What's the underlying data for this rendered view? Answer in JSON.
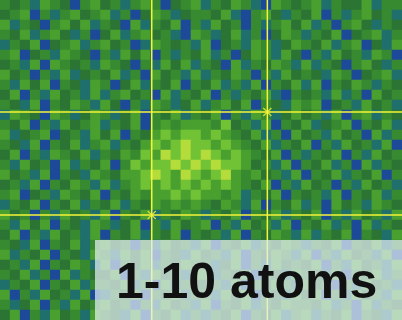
{
  "chart_data": {
    "type": "heatmap",
    "annotation": "1-10 atoms",
    "tick_labels": false,
    "crosshairs": [
      [
        26.6,
        11.2
      ],
      [
        15.1,
        21.5
      ]
    ],
    "cells": [
      [
        5,
        4,
        5,
        3,
        6,
        5,
        4,
        2,
        5,
        6,
        4,
        5,
        3,
        5,
        6,
        5,
        2,
        4,
        5,
        6,
        3,
        5,
        4,
        6,
        5,
        3,
        2,
        6,
        5,
        4,
        5,
        6,
        3,
        5,
        4,
        4,
        6,
        3,
        5,
        5
      ],
      [
        4,
        5,
        6,
        2,
        5,
        3,
        5,
        6,
        4,
        5,
        6,
        3,
        5,
        2,
        4,
        6,
        5,
        3,
        4,
        5,
        5,
        4,
        6,
        3,
        2,
        5,
        6,
        4,
        3,
        5,
        4,
        6,
        2,
        5,
        3,
        5,
        6,
        4,
        5,
        3
      ],
      [
        6,
        3,
        5,
        4,
        2,
        5,
        6,
        4,
        6,
        3,
        5,
        4,
        2,
        6,
        3,
        5,
        4,
        6,
        2,
        5,
        3,
        6,
        4,
        5,
        2,
        5,
        3,
        5,
        6,
        4,
        6,
        3,
        5,
        2,
        5,
        6,
        4,
        3,
        5,
        4
      ],
      [
        5,
        4,
        6,
        3,
        5,
        6,
        4,
        3,
        5,
        2,
        4,
        6,
        3,
        5,
        6,
        4,
        5,
        3,
        2,
        6,
        5,
        3,
        4,
        6,
        3,
        5,
        2,
        4,
        6,
        5,
        3,
        5,
        4,
        6,
        2,
        4,
        5,
        6,
        3,
        5
      ],
      [
        3,
        5,
        4,
        6,
        2,
        4,
        5,
        6,
        3,
        5,
        6,
        4,
        5,
        2,
        3,
        6,
        5,
        4,
        5,
        3,
        6,
        2,
        4,
        5,
        3,
        6,
        5,
        3,
        4,
        6,
        5,
        4,
        6,
        3,
        5,
        6,
        2,
        4,
        3,
        6
      ],
      [
        5,
        6,
        2,
        4,
        5,
        3,
        6,
        5,
        4,
        2,
        5,
        3,
        6,
        4,
        6,
        2,
        5,
        3,
        5,
        4,
        6,
        3,
        5,
        2,
        4,
        6,
        5,
        3,
        6,
        4,
        2,
        5,
        3,
        6,
        4,
        5,
        3,
        6,
        5,
        2
      ],
      [
        4,
        5,
        3,
        6,
        2,
        6,
        5,
        4,
        5,
        3,
        6,
        5,
        4,
        2,
        5,
        3,
        6,
        4,
        6,
        3,
        5,
        4,
        2,
        6,
        3,
        5,
        4,
        6,
        5,
        3,
        6,
        3,
        5,
        4,
        2,
        5,
        6,
        4,
        3,
        5
      ],
      [
        6,
        4,
        5,
        2,
        5,
        3,
        6,
        3,
        4,
        5,
        4,
        6,
        3,
        5,
        2,
        6,
        4,
        5,
        3,
        6,
        3,
        5,
        4,
        6,
        5,
        2,
        5,
        3,
        6,
        4,
        5,
        4,
        3,
        6,
        5,
        2,
        4,
        5,
        6,
        3
      ],
      [
        5,
        3,
        6,
        4,
        6,
        2,
        5,
        4,
        3,
        6,
        5,
        2,
        4,
        6,
        3,
        5,
        4,
        6,
        2,
        5,
        4,
        6,
        3,
        5,
        3,
        6,
        2,
        5,
        4,
        6,
        3,
        6,
        2,
        5,
        4,
        6,
        5,
        3,
        5,
        4
      ],
      [
        4,
        6,
        2,
        5,
        3,
        6,
        4,
        5,
        3,
        6,
        3,
        5,
        6,
        4,
        5,
        2,
        6,
        3,
        5,
        4,
        6,
        2,
        5,
        3,
        5,
        4,
        6,
        3,
        2,
        5,
        4,
        5,
        3,
        6,
        3,
        5,
        2,
        6,
        4,
        5
      ],
      [
        5,
        4,
        3,
        6,
        2,
        5,
        4,
        6,
        5,
        3,
        6,
        4,
        2,
        5,
        3,
        6,
        5,
        3,
        4,
        6,
        3,
        5,
        6,
        4,
        6,
        2,
        5,
        4,
        3,
        6,
        5,
        6,
        2,
        4,
        5,
        3,
        6,
        4,
        5,
        3
      ],
      [
        3,
        6,
        5,
        4,
        2,
        6,
        5,
        3,
        4,
        6,
        5,
        3,
        4,
        6,
        2,
        5,
        4,
        6,
        3,
        5,
        4,
        6,
        2,
        5,
        3,
        6,
        5,
        3,
        4,
        6,
        4,
        5,
        3,
        6,
        2,
        5,
        6,
        3,
        5,
        4
      ],
      [
        5,
        4,
        6,
        2,
        5,
        3,
        6,
        4,
        5,
        6,
        3,
        5,
        4,
        6,
        2,
        5,
        6,
        5,
        6,
        6,
        6,
        5,
        7,
        4,
        5,
        3,
        6,
        2,
        5,
        4,
        6,
        3,
        4,
        5,
        6,
        2,
        5,
        4,
        6,
        3
      ],
      [
        6,
        3,
        4,
        5,
        6,
        2,
        4,
        5,
        3,
        6,
        4,
        6,
        2,
        5,
        4,
        6,
        7,
        6,
        7,
        7,
        6,
        7,
        6,
        5,
        4,
        6,
        3,
        5,
        2,
        6,
        4,
        5,
        3,
        6,
        4,
        5,
        2,
        6,
        3,
        5
      ],
      [
        5,
        4,
        3,
        6,
        2,
        5,
        4,
        6,
        3,
        5,
        6,
        3,
        5,
        4,
        6,
        7,
        6,
        7,
        8,
        7,
        7,
        6,
        7,
        6,
        5,
        4,
        6,
        3,
        5,
        4,
        6,
        2,
        5,
        3,
        6,
        4,
        5,
        3,
        6,
        2
      ],
      [
        4,
        6,
        2,
        5,
        3,
        6,
        5,
        4,
        6,
        3,
        5,
        4,
        6,
        5,
        7,
        6,
        8,
        7,
        8,
        7,
        8,
        7,
        6,
        7,
        6,
        5,
        4,
        6,
        2,
        5,
        3,
        5,
        4,
        6,
        2,
        5,
        3,
        6,
        4,
        5
      ],
      [
        5,
        3,
        6,
        4,
        5,
        2,
        6,
        3,
        5,
        4,
        6,
        2,
        5,
        7,
        6,
        7,
        7,
        8,
        7,
        8,
        7,
        8,
        7,
        7,
        6,
        4,
        5,
        3,
        6,
        2,
        5,
        4,
        6,
        3,
        5,
        2,
        6,
        3,
        5,
        4
      ],
      [
        6,
        4,
        5,
        3,
        6,
        2,
        5,
        4,
        3,
        6,
        5,
        4,
        6,
        6,
        7,
        8,
        7,
        6,
        8,
        7,
        6,
        7,
        8,
        6,
        5,
        6,
        4,
        5,
        3,
        6,
        2,
        5,
        4,
        6,
        3,
        5,
        4,
        6,
        2,
        5
      ],
      [
        4,
        5,
        3,
        6,
        2,
        5,
        4,
        6,
        5,
        3,
        6,
        3,
        5,
        6,
        7,
        6,
        7,
        6,
        7,
        6,
        7,
        6,
        7,
        6,
        5,
        4,
        6,
        2,
        5,
        3,
        6,
        4,
        5,
        2,
        5,
        3,
        6,
        4,
        5,
        3
      ],
      [
        5,
        6,
        2,
        4,
        5,
        3,
        6,
        5,
        4,
        6,
        2,
        5,
        4,
        6,
        5,
        6,
        6,
        7,
        6,
        7,
        6,
        6,
        5,
        6,
        3,
        5,
        4,
        6,
        2,
        5,
        4,
        5,
        3,
        6,
        2,
        5,
        4,
        6,
        3,
        5
      ],
      [
        3,
        5,
        4,
        6,
        2,
        5,
        4,
        6,
        3,
        5,
        4,
        6,
        3,
        5,
        4,
        6,
        5,
        6,
        5,
        6,
        5,
        4,
        6,
        5,
        3,
        6,
        2,
        5,
        4,
        6,
        3,
        5,
        2,
        6,
        4,
        5,
        3,
        6,
        5,
        4
      ],
      [
        6,
        4,
        5,
        2,
        5,
        3,
        6,
        4,
        5,
        3,
        6,
        2,
        5,
        4,
        6,
        3,
        5,
        4,
        6,
        5,
        3,
        5,
        4,
        6,
        2,
        5,
        4,
        6,
        3,
        5,
        4,
        6,
        2,
        5,
        3,
        6,
        4,
        5,
        3,
        6
      ],
      [
        5,
        3,
        6,
        4,
        6,
        2,
        5,
        4,
        3,
        6,
        5,
        3,
        4,
        6,
        2,
        5,
        3,
        6,
        4,
        5,
        6,
        2,
        5,
        3,
        6,
        4,
        5,
        3,
        6,
        2,
        5,
        4,
        6,
        3,
        5,
        2,
        6,
        3,
        5,
        4
      ],
      [
        4,
        6,
        2,
        5,
        3,
        6,
        4,
        5,
        3,
        6,
        2,
        5,
        4,
        6,
        3,
        5,
        4,
        6,
        2,
        5,
        4,
        5,
        3,
        6,
        2,
        5,
        4,
        6,
        5,
        3,
        6,
        3,
        5,
        4,
        6,
        2,
        5,
        4,
        3,
        6
      ],
      [
        5,
        4,
        3,
        6,
        2,
        5,
        4,
        6,
        3,
        5,
        6,
        4,
        5,
        2,
        5,
        3,
        6,
        4,
        5,
        3,
        6,
        2,
        5,
        4,
        6,
        3,
        5,
        4,
        6,
        5,
        3,
        5,
        4,
        6,
        2,
        5,
        4,
        6,
        3,
        5
      ],
      [
        6,
        3,
        5,
        4,
        6,
        2,
        5,
        4,
        3,
        6,
        5,
        3,
        6,
        4,
        6,
        2,
        5,
        4,
        3,
        6,
        4,
        5,
        3,
        6,
        2,
        5,
        4,
        6,
        5,
        3,
        6,
        2,
        5,
        3,
        6,
        4,
        5,
        3,
        6,
        2
      ],
      [
        4,
        5,
        3,
        6,
        2,
        5,
        4,
        6,
        5,
        3,
        6,
        2,
        5,
        4,
        6,
        3,
        5,
        4,
        6,
        5,
        5,
        3,
        4,
        6,
        2,
        5,
        3,
        6,
        4,
        5,
        4,
        6,
        2,
        5,
        3,
        6,
        4,
        5,
        3,
        6
      ],
      [
        5,
        4,
        6,
        3,
        5,
        2,
        6,
        3,
        5,
        4,
        4,
        6,
        2,
        5,
        3,
        6,
        4,
        5,
        3,
        6,
        6,
        3,
        5,
        4,
        6,
        2,
        5,
        4,
        3,
        6,
        5,
        4,
        3,
        6,
        2,
        5,
        4,
        6,
        3,
        5
      ],
      [
        3,
        5,
        4,
        6,
        2,
        5,
        4,
        6,
        3,
        5,
        5,
        4,
        6,
        3,
        5,
        2,
        6,
        3,
        5,
        4,
        4,
        5,
        3,
        6,
        2,
        5,
        4,
        6,
        5,
        3,
        6,
        4,
        5,
        2,
        5,
        3,
        6,
        4,
        5,
        3
      ],
      [
        6,
        2,
        5,
        3,
        6,
        4,
        5,
        3,
        6,
        2,
        3,
        5,
        4,
        6,
        2,
        5,
        4,
        6,
        3,
        5,
        5,
        3,
        6,
        4,
        6,
        2,
        5,
        4,
        3,
        6,
        4,
        6,
        2,
        5,
        3,
        6,
        4,
        5,
        3,
        6
      ],
      [
        5,
        3,
        4,
        6,
        2,
        5,
        3,
        6,
        4,
        5,
        6,
        4,
        5,
        2,
        5,
        3,
        6,
        4,
        5,
        3,
        6,
        2,
        5,
        4,
        6,
        3,
        5,
        4,
        6,
        5,
        5,
        4,
        6,
        3,
        5,
        2,
        6,
        3,
        5,
        4
      ],
      [
        4,
        6,
        2,
        5,
        3,
        6,
        4,
        5,
        3,
        6,
        5,
        4,
        3,
        6,
        2,
        5,
        4,
        6,
        3,
        5,
        3,
        5,
        4,
        6,
        2,
        5,
        4,
        6,
        3,
        5,
        6,
        3,
        5,
        4,
        6,
        2,
        5,
        4,
        3,
        6
      ]
    ]
  }
}
